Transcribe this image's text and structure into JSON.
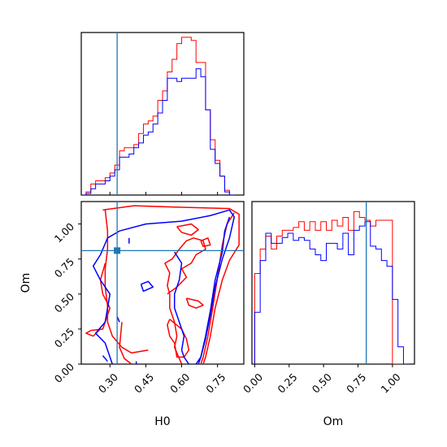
{
  "chart_data": {
    "type": "corner",
    "parameters": [
      "H0",
      "Om"
    ],
    "truths": {
      "H0": 0.33,
      "Om": 0.81
    },
    "colors": {
      "red": "#ff0000",
      "blue": "#0000ff",
      "truth": "#1f77b4"
    },
    "panels": [
      {
        "id": "hist-H0",
        "type": "histogram",
        "xlim": [
          0.18,
          0.86
        ],
        "ylim": [
          0,
          1.03
        ],
        "bin_edges": [
          0.18,
          0.2,
          0.22,
          0.24,
          0.26,
          0.28,
          0.3,
          0.32,
          0.34,
          0.36,
          0.38,
          0.4,
          0.42,
          0.44,
          0.46,
          0.48,
          0.5,
          0.52,
          0.54,
          0.56,
          0.58,
          0.6,
          0.62,
          0.64,
          0.66,
          0.68,
          0.7,
          0.72,
          0.74,
          0.76,
          0.78,
          0.8,
          0.82
        ],
        "series": [
          {
            "name": "",
            "color": "red",
            "values": [
              0.0,
              0.02,
              0.07,
              0.09,
              0.09,
              0.11,
              0.14,
              0.19,
              0.28,
              0.3,
              0.3,
              0.32,
              0.39,
              0.45,
              0.47,
              0.5,
              0.6,
              0.66,
              0.78,
              0.86,
              0.96,
              1.0,
              1.0,
              0.98,
              0.84,
              0.84,
              0.54,
              0.35,
              0.22,
              0.12,
              0.03,
              0.0
            ]
          },
          {
            "name": "",
            "color": "blue",
            "values": [
              0.0,
              0.01,
              0.04,
              0.07,
              0.07,
              0.09,
              0.12,
              0.16,
              0.24,
              0.24,
              0.26,
              0.3,
              0.33,
              0.38,
              0.4,
              0.45,
              0.52,
              0.6,
              0.74,
              0.74,
              0.72,
              0.74,
              0.74,
              0.74,
              0.8,
              0.75,
              0.54,
              0.29,
              0.2,
              0.12,
              0.02,
              0.0
            ]
          }
        ]
      },
      {
        "id": "contour-H0-Om",
        "type": "contour",
        "xlabel": "H0",
        "ylabel": "Om",
        "xlim": [
          0.18,
          0.86
        ],
        "ylim": [
          0.0,
          1.16
        ],
        "xticks": [
          0.3,
          0.45,
          0.6,
          0.75
        ],
        "xtick_labels": [
          "0.30",
          "0.45",
          "0.60",
          "0.75"
        ],
        "yticks": [
          0.0,
          0.25,
          0.5,
          0.75,
          1.0
        ],
        "ytick_labels": [
          "0.00",
          "0.25",
          "0.50",
          "0.75",
          "1.00"
        ],
        "point": {
          "x": 0.33,
          "y": 0.81
        },
        "contours": [
          {
            "color": "red",
            "points": [
              [
                0.27,
                1.1
              ],
              [
                0.4,
                1.13
              ],
              [
                0.58,
                1.12
              ],
              [
                0.8,
                1.11
              ],
              [
                0.84,
                1.07
              ],
              [
                0.84,
                0.85
              ],
              [
                0.8,
                0.74
              ],
              [
                0.77,
                0.6
              ],
              [
                0.74,
                0.4
              ],
              [
                0.72,
                0.2
              ],
              [
                0.7,
                0.05
              ],
              [
                0.69,
                0.0
              ]
            ]
          },
          {
            "color": "red",
            "points": [
              [
                0.82,
                1.08
              ],
              [
                0.79,
                1.0
              ],
              [
                0.77,
                0.85
              ],
              [
                0.75,
                0.62
              ],
              [
                0.73,
                0.4
              ],
              [
                0.71,
                0.2
              ],
              [
                0.69,
                0.05
              ],
              [
                0.68,
                0.0
              ]
            ]
          },
          {
            "color": "red",
            "points": [
              [
                0.28,
                1.1
              ],
              [
                0.29,
                0.95
              ],
              [
                0.29,
                0.82
              ],
              [
                0.28,
                0.68
              ],
              [
                0.28,
                0.55
              ],
              [
                0.29,
                0.42
              ],
              [
                0.29,
                0.3
              ],
              [
                0.31,
                0.2
              ],
              [
                0.35,
                0.12
              ],
              [
                0.39,
                0.08
              ],
              [
                0.46,
                0.1
              ]
            ]
          },
          {
            "color": "red",
            "points": [
              [
                0.28,
                0.72
              ],
              [
                0.26,
                0.6
              ],
              [
                0.27,
                0.5
              ],
              [
                0.3,
                0.4
              ],
              [
                0.27,
                0.25
              ],
              [
                0.22,
                0.24
              ],
              [
                0.2,
                0.22
              ],
              [
                0.23,
                0.2
              ],
              [
                0.26,
                0.25
              ]
            ]
          },
          {
            "color": "red",
            "points": [
              [
                0.35,
                0.3
              ],
              [
                0.34,
                0.12
              ],
              [
                0.36,
                0.04
              ],
              [
                0.39,
                0.0
              ]
            ]
          },
          {
            "color": "red",
            "points": [
              [
                0.54,
                0.5
              ],
              [
                0.58,
                0.55
              ],
              [
                0.62,
                0.62
              ],
              [
                0.6,
                0.68
              ],
              [
                0.64,
                0.72
              ],
              [
                0.66,
                0.78
              ],
              [
                0.7,
                0.82
              ],
              [
                0.69,
                0.88
              ],
              [
                0.65,
                0.9
              ],
              [
                0.62,
                0.88
              ],
              [
                0.59,
                0.82
              ],
              [
                0.56,
                0.75
              ],
              [
                0.53,
                0.72
              ],
              [
                0.55,
                0.65
              ],
              [
                0.54,
                0.56
              ],
              [
                0.55,
                0.5
              ],
              [
                0.55,
                0.4
              ],
              [
                0.57,
                0.3
              ],
              [
                0.58,
                0.2
              ],
              [
                0.57,
                0.12
              ],
              [
                0.59,
                0.04
              ],
              [
                0.6,
                0.0
              ]
            ]
          },
          {
            "color": "red",
            "points": [
              [
                0.55,
                0.32
              ],
              [
                0.6,
                0.25
              ],
              [
                0.62,
                0.18
              ],
              [
                0.63,
                0.1
              ],
              [
                0.61,
                0.05
              ],
              [
                0.58,
                0.05
              ],
              [
                0.57,
                0.15
              ],
              [
                0.55,
                0.2
              ],
              [
                0.54,
                0.28
              ],
              [
                0.55,
                0.32
              ]
            ]
          },
          {
            "color": "red",
            "points": [
              [
                0.62,
                0.47
              ],
              [
                0.67,
                0.45
              ],
              [
                0.69,
                0.42
              ],
              [
                0.66,
                0.4
              ],
              [
                0.63,
                0.42
              ],
              [
                0.62,
                0.47
              ]
            ]
          },
          {
            "color": "red",
            "points": [
              [
                0.58,
                0.98
              ],
              [
                0.64,
                1.0
              ],
              [
                0.67,
                0.96
              ],
              [
                0.64,
                0.92
              ],
              [
                0.6,
                0.94
              ],
              [
                0.58,
                0.98
              ]
            ]
          },
          {
            "color": "red",
            "points": [
              [
                0.68,
                0.88
              ],
              [
                0.71,
                0.9
              ],
              [
                0.72,
                0.85
              ],
              [
                0.69,
                0.84
              ],
              [
                0.68,
                0.88
              ]
            ]
          },
          {
            "color": "blue",
            "points": [
              [
                0.26,
                0.78
              ],
              [
                0.29,
                0.9
              ],
              [
                0.34,
                0.95
              ],
              [
                0.45,
                1.0
              ],
              [
                0.6,
                1.02
              ],
              [
                0.72,
                1.06
              ],
              [
                0.8,
                1.1
              ],
              [
                0.82,
                1.05
              ],
              [
                0.8,
                0.9
              ],
              [
                0.77,
                0.75
              ],
              [
                0.74,
                0.55
              ],
              [
                0.72,
                0.35
              ],
              [
                0.7,
                0.18
              ],
              [
                0.68,
                0.05
              ],
              [
                0.67,
                0.0
              ]
            ]
          },
          {
            "color": "blue",
            "points": [
              [
                0.8,
                1.05
              ],
              [
                0.78,
                0.95
              ],
              [
                0.77,
                0.8
              ],
              [
                0.74,
                0.6
              ],
              [
                0.72,
                0.38
              ],
              [
                0.7,
                0.2
              ],
              [
                0.68,
                0.05
              ],
              [
                0.66,
                0.0
              ]
            ]
          },
          {
            "color": "blue",
            "points": [
              [
                0.26,
                0.78
              ],
              [
                0.23,
                0.7
              ],
              [
                0.26,
                0.6
              ],
              [
                0.3,
                0.5
              ],
              [
                0.29,
                0.4
              ],
              [
                0.28,
                0.3
              ],
              [
                0.24,
                0.22
              ],
              [
                0.28,
                0.15
              ],
              [
                0.3,
                0.05
              ],
              [
                0.31,
                0.0
              ]
            ]
          },
          {
            "color": "blue",
            "points": [
              [
                0.57,
                0.8
              ],
              [
                0.6,
                0.72
              ],
              [
                0.59,
                0.6
              ],
              [
                0.57,
                0.5
              ],
              [
                0.57,
                0.4
              ],
              [
                0.59,
                0.3
              ],
              [
                0.61,
                0.2
              ],
              [
                0.6,
                0.1
              ],
              [
                0.61,
                0.05
              ],
              [
                0.63,
                0.0
              ]
            ]
          },
          {
            "color": "blue",
            "points": [
              [
                0.43,
                0.57
              ],
              [
                0.46,
                0.59
              ],
              [
                0.48,
                0.55
              ],
              [
                0.44,
                0.52
              ],
              [
                0.43,
                0.57
              ]
            ]
          },
          {
            "color": "blue",
            "points": [
              [
                0.38,
                0.86
              ],
              [
                0.38,
                0.9
              ]
            ]
          },
          {
            "color": "blue",
            "points": [
              [
                0.33,
                0.34
              ],
              [
                0.34,
                0.3
              ]
            ]
          },
          {
            "color": "blue",
            "points": [
              [
                0.27,
                0.06
              ],
              [
                0.29,
                0.02
              ]
            ]
          },
          {
            "color": "blue",
            "points": [
              [
                0.41,
                0.0
              ],
              [
                0.41,
                0.02
              ]
            ]
          }
        ]
      },
      {
        "id": "hist-Om",
        "type": "histogram",
        "xlabel": "Om",
        "xlim": [
          -0.02,
          1.16
        ],
        "ylim": [
          0,
          1.13
        ],
        "xticks": [
          0.0,
          0.25,
          0.5,
          0.75,
          1.0
        ],
        "xtick_labels": [
          "0.00",
          "0.25",
          "0.50",
          "0.75",
          "1.00"
        ],
        "bin_edges": [
          0.0,
          0.04,
          0.08,
          0.12,
          0.16,
          0.2,
          0.24,
          0.28,
          0.32,
          0.36,
          0.4,
          0.44,
          0.48,
          0.52,
          0.56,
          0.6,
          0.64,
          0.68,
          0.72,
          0.76,
          0.8,
          0.84,
          0.88,
          0.92,
          0.96,
          1.0,
          1.04,
          1.08,
          1.12
        ],
        "series": [
          {
            "name": "",
            "color": "red",
            "values": [
              0.63,
              0.8,
              0.89,
              0.8,
              0.89,
              0.93,
              0.93,
              0.95,
              0.99,
              0.93,
              0.99,
              0.93,
              0.99,
              0.93,
              1.0,
              0.96,
              1.02,
              0.93,
              1.06,
              1.02,
              1.0,
              0.96,
              1.0,
              1.0,
              1.0,
              0.0,
              0.0,
              0.0
            ]
          },
          {
            "name": "",
            "color": "blue",
            "values": [
              0.36,
              0.72,
              0.91,
              0.84,
              0.84,
              0.88,
              0.91,
              0.86,
              0.88,
              0.86,
              0.8,
              0.76,
              0.72,
              0.84,
              0.84,
              0.8,
              0.91,
              0.76,
              0.93,
              0.96,
              0.99,
              0.82,
              0.8,
              0.72,
              0.68,
              0.45,
              0.12,
              0.0
            ]
          }
        ]
      }
    ]
  }
}
